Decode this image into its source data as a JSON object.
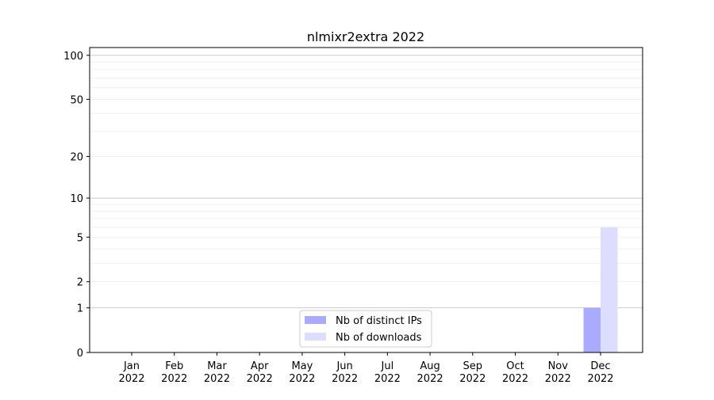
{
  "chart_data": {
    "type": "bar",
    "title": "nlmixr2extra 2022",
    "xlabel": "",
    "ylabel": "",
    "yscale": "symlog (log10(1+y))",
    "ylim": [
      0,
      113
    ],
    "yticks": [
      0,
      1,
      2,
      5,
      10,
      20,
      50,
      100
    ],
    "ytick_labels": [
      "0",
      "1",
      "2",
      "5",
      "10",
      "20",
      "50",
      "100"
    ],
    "grid": true,
    "legend_placement": "bottom-center",
    "categories": [
      [
        "Jan",
        "2022"
      ],
      [
        "Feb",
        "2022"
      ],
      [
        "Mar",
        "2022"
      ],
      [
        "Apr",
        "2022"
      ],
      [
        "May",
        "2022"
      ],
      [
        "Jun",
        "2022"
      ],
      [
        "Jul",
        "2022"
      ],
      [
        "Aug",
        "2022"
      ],
      [
        "Sep",
        "2022"
      ],
      [
        "Oct",
        "2022"
      ],
      [
        "Nov",
        "2022"
      ],
      [
        "Dec",
        "2022"
      ]
    ],
    "series": [
      {
        "name": "Nb of distinct IPs",
        "color": "#aaaaff",
        "values": [
          0,
          0,
          0,
          0,
          0,
          0,
          0,
          0,
          0,
          0,
          0,
          1
        ]
      },
      {
        "name": "Nb of downloads",
        "color": "#ddddff",
        "values": [
          0,
          0,
          0,
          0,
          0,
          0,
          0,
          0,
          0,
          0,
          0,
          6
        ]
      }
    ]
  }
}
